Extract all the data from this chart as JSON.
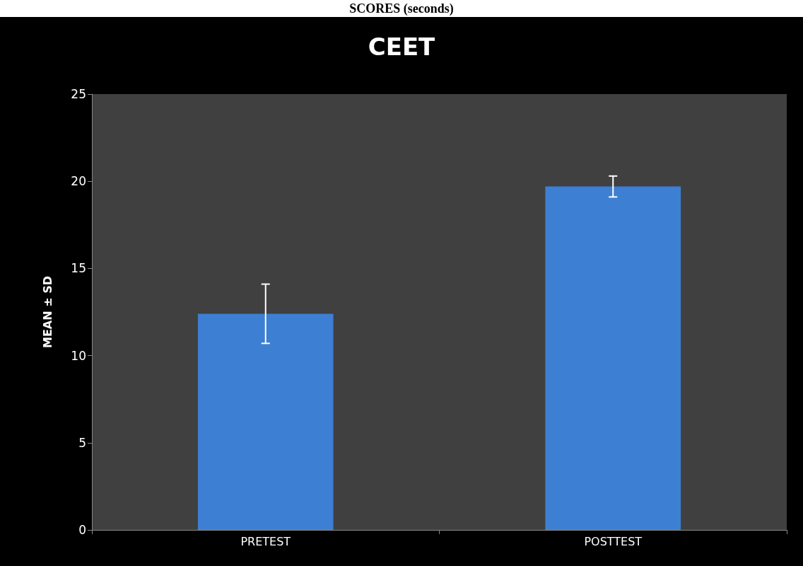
{
  "chart_data": {
    "type": "bar",
    "title": "CEET",
    "ylabel": "MEAN ± SD",
    "annotations": [
      "SCORES (seconds)"
    ],
    "categories": [
      "PRETEST",
      "POSTTEST"
    ],
    "values": [
      12.4,
      19.7
    ],
    "errors": [
      1.7,
      0.6
    ],
    "color": "#3d7fd3",
    "ylim": [
      0,
      25
    ],
    "yticks": [
      0,
      5,
      10,
      15,
      20,
      25
    ],
    "grid": false
  }
}
